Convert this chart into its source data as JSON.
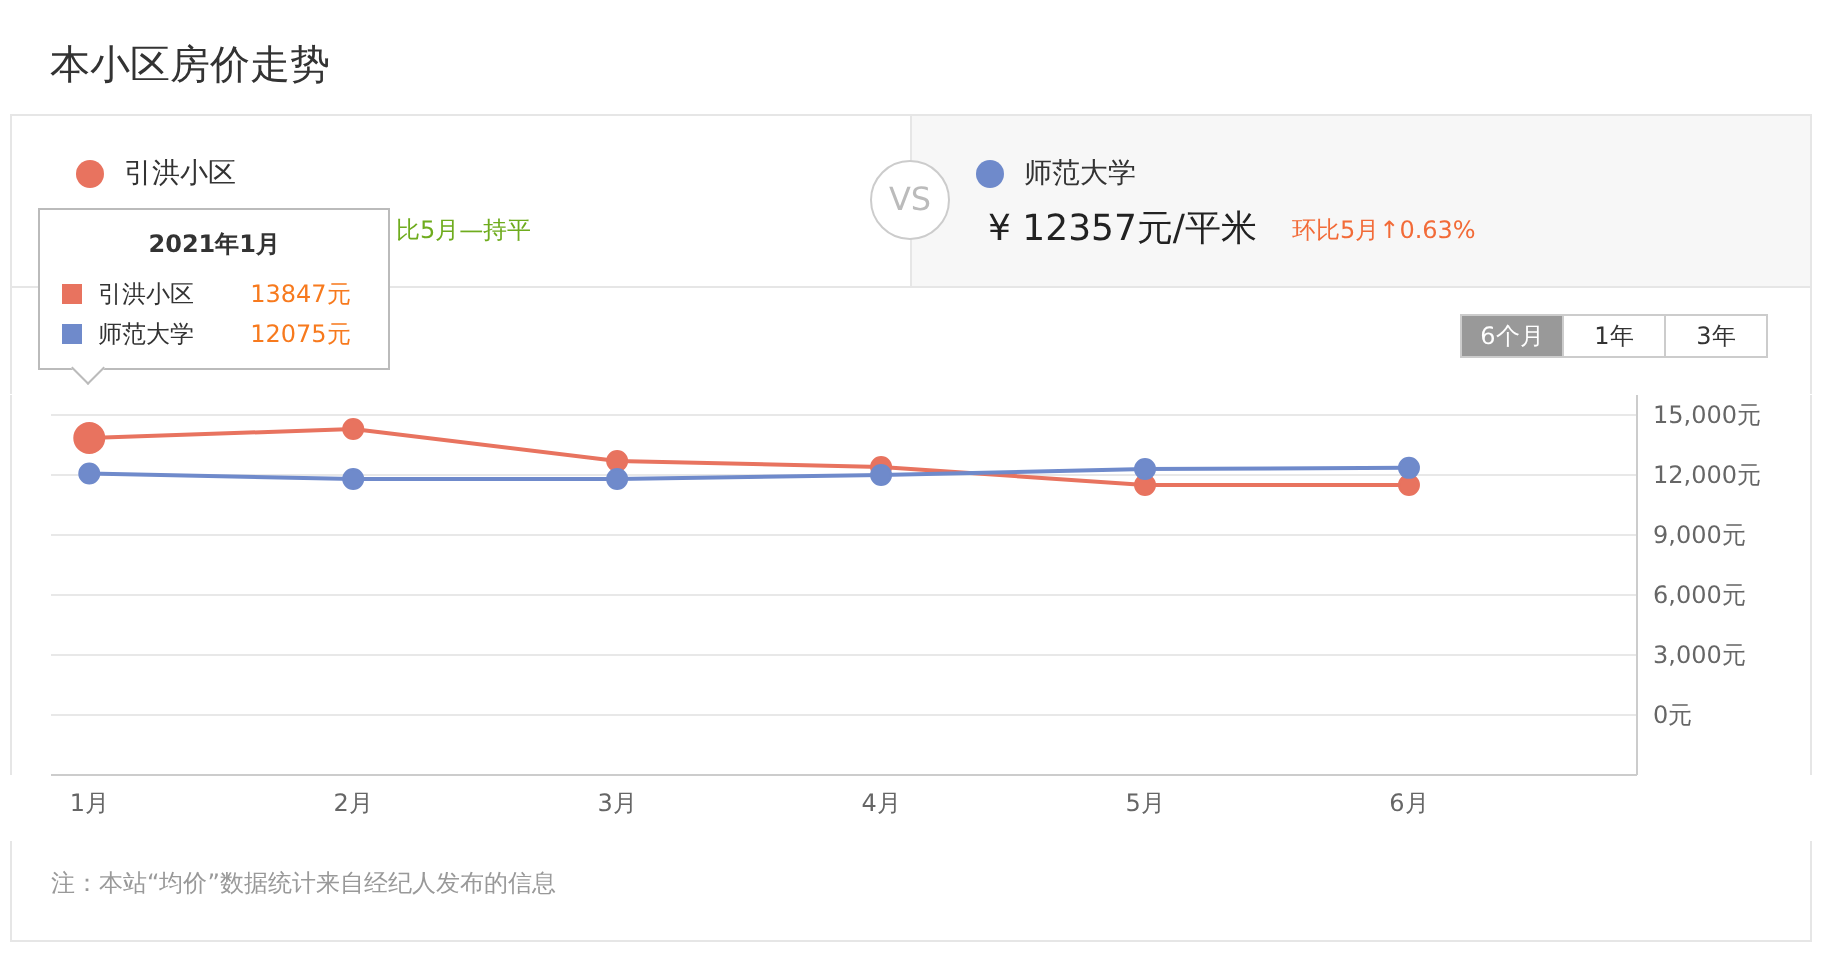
{
  "chart_data": {
    "type": "line",
    "title": "本小区房价走势",
    "categories": [
      "1月",
      "2月",
      "3月",
      "4月",
      "5月",
      "6月"
    ],
    "series": [
      {
        "name": "引洪小区",
        "color": "#e8735f",
        "values": [
          13847,
          14300,
          12700,
          12400,
          11500,
          11500
        ]
      },
      {
        "name": "师范大学",
        "color": "#6f8acb",
        "values": [
          12075,
          11800,
          11800,
          12000,
          12300,
          12357
        ]
      }
    ],
    "ylim": [
      -3000,
      16000
    ],
    "yticks": [
      {
        "value": 0,
        "label": "0元"
      },
      {
        "value": 3000,
        "label": "3,000元"
      },
      {
        "value": 6000,
        "label": "6,000元"
      },
      {
        "value": 9000,
        "label": "9,000元"
      },
      {
        "value": 12000,
        "label": "12,000元"
      },
      {
        "value": 15000,
        "label": "15,000元"
      }
    ],
    "grid": "y",
    "legend": "top",
    "marker": "circle",
    "line_style": "solid",
    "annotations": [
      "比5月—持平",
      "VS",
      "¥ 12357元/平米",
      "环比5月↑0.63%",
      "6个月",
      "1年",
      "3年",
      "2021年1月",
      "13847元",
      "12075元",
      "注：本站“均价”数据统计来自经纪人发布的信息"
    ]
  }
}
